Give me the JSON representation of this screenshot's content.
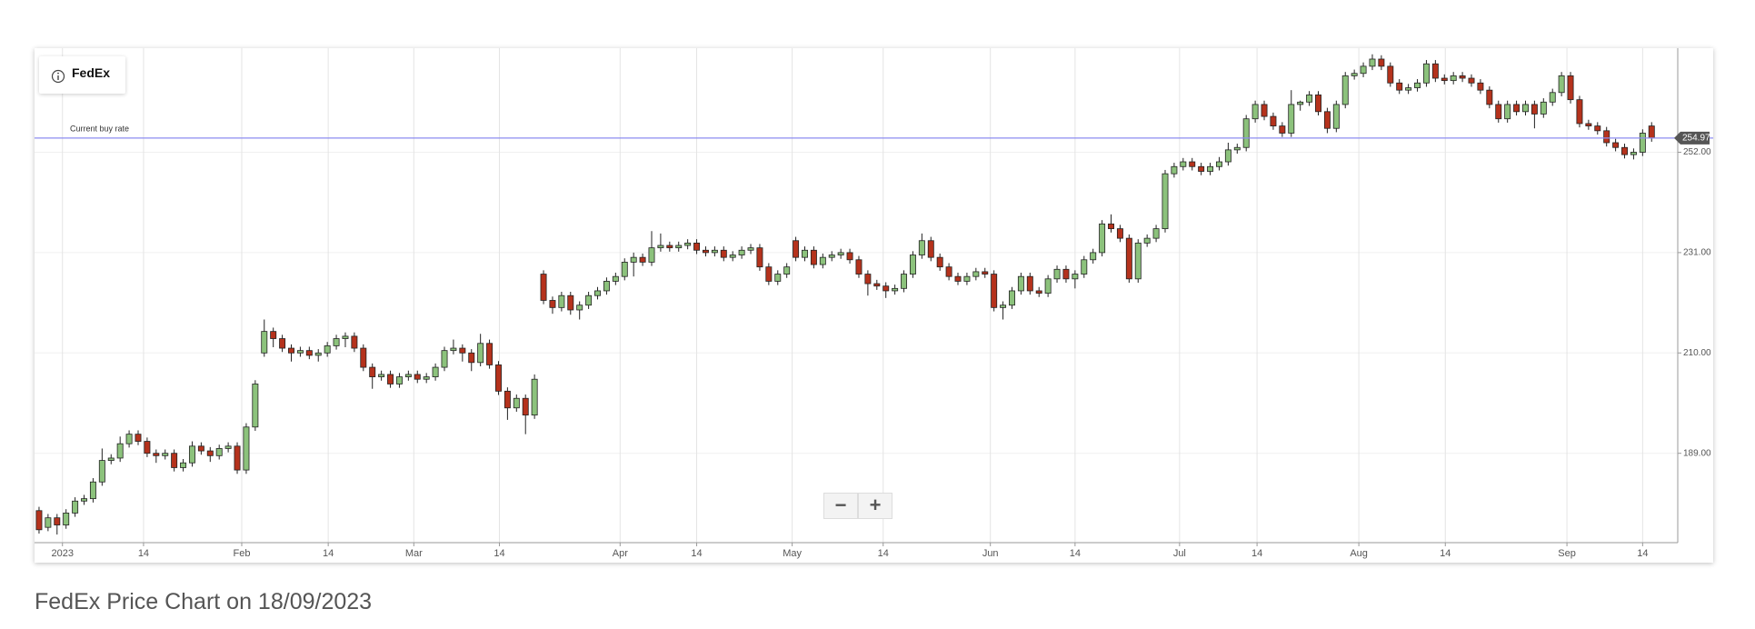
{
  "chart_data": {
    "type": "candlestick",
    "caption": "FedEx Price Chart on 18/09/2023",
    "xlim": [
      -0.5,
      181.9
    ],
    "xticks": [
      {
        "value": 2.6,
        "label": "2023"
      },
      {
        "value": 11.6,
        "label": "14"
      },
      {
        "value": 22.5,
        "label": "Feb"
      },
      {
        "value": 32.1,
        "label": "14"
      },
      {
        "value": 41.6,
        "label": "Mar"
      },
      {
        "value": 51.1,
        "label": "14"
      },
      {
        "value": 64.5,
        "label": "Apr"
      },
      {
        "value": 73.0,
        "label": "14"
      },
      {
        "value": 83.6,
        "label": "May"
      },
      {
        "value": 93.7,
        "label": "14"
      },
      {
        "value": 105.6,
        "label": "Jun"
      },
      {
        "value": 115.0,
        "label": "14"
      },
      {
        "value": 126.6,
        "label": "Jul"
      },
      {
        "value": 135.2,
        "label": "14"
      },
      {
        "value": 146.5,
        "label": "Aug"
      },
      {
        "value": 156.1,
        "label": "14"
      },
      {
        "value": 169.6,
        "label": "Sep"
      },
      {
        "value": 178.0,
        "label": "14"
      }
    ],
    "ylim": [
      170.3,
      273.4
    ],
    "yticks": [
      {
        "value": 189,
        "label": "189.00"
      },
      {
        "value": 210,
        "label": "210.00"
      },
      {
        "value": 231,
        "label": "231.00"
      },
      {
        "value": 252,
        "label": "252.00"
      }
    ],
    "grid": true,
    "reference_line": {
      "label": "Current buy rate",
      "value": 254.97,
      "color": "#8c8cf0"
    },
    "series": [
      {
        "name": "FedEx",
        "up_color": "#8cc27c",
        "down_color": "#b5321c",
        "open": [
          177.0,
          173.5,
          175.5,
          174.0,
          176.5,
          179.0,
          179.5,
          183.0,
          187.5,
          188.0,
          191.0,
          193.0,
          191.5,
          189.0,
          188.5,
          189.0,
          186.0,
          187.0,
          190.5,
          189.5,
          188.5,
          190.0,
          190.5,
          185.5,
          194.5,
          210.0,
          214.5,
          213.0,
          211.0,
          210.0,
          210.5,
          209.5,
          210.0,
          211.5,
          213.0,
          213.5,
          211.0,
          207.0,
          205.0,
          205.5,
          203.5,
          205.0,
          205.5,
          204.5,
          205.0,
          207.0,
          210.5,
          211.0,
          210.0,
          208.0,
          212.0,
          207.5,
          202.0,
          198.5,
          200.5,
          197.0,
          226.5,
          221.0,
          219.5,
          222.0,
          219.0,
          220.0,
          222.0,
          223.0,
          225.0,
          226.0,
          229.0,
          230.0,
          229.0,
          232.0,
          232.5,
          232.0,
          232.5,
          233.0,
          231.5,
          231.0,
          231.5,
          230.0,
          230.5,
          231.5,
          232.0,
          228.0,
          225.0,
          226.5,
          233.5,
          230.0,
          231.5,
          228.5,
          230.0,
          230.5,
          231.0,
          229.5,
          226.5,
          224.5,
          224.0,
          223.0,
          223.5,
          226.5,
          230.5,
          233.5,
          230.0,
          228.0,
          226.0,
          225.0,
          226.0,
          227.0,
          226.5,
          219.5,
          220.0,
          223.0,
          226.0,
          223.0,
          222.5,
          225.5,
          227.5,
          225.5,
          226.5,
          229.5,
          231.0,
          237.0,
          236.0,
          234.0,
          225.5,
          233.0,
          234.0,
          236.0,
          247.5,
          249.0,
          250.0,
          249.0,
          248.0,
          249.0,
          250.0,
          252.5,
          253.0,
          259.0,
          262.0,
          259.5,
          257.5,
          256.0,
          262.0,
          262.5,
          264.0,
          260.5,
          257.0,
          262.0,
          268.0,
          268.5,
          270.0,
          271.5,
          270.0,
          266.5,
          265.0,
          265.5,
          266.5,
          270.5,
          267.5,
          267.0,
          268.0,
          267.5,
          266.5,
          265.0,
          262.0,
          259.0,
          262.0,
          260.5,
          262.0,
          260.0,
          262.5,
          264.5,
          268.0,
          263.0,
          258.0,
          257.5,
          256.5,
          254.0,
          253.0,
          251.5,
          252.0,
          257.5
        ],
        "high": [
          177.8,
          176.3,
          176.3,
          177.3,
          179.8,
          180.3,
          183.8,
          190.0,
          188.8,
          192.5,
          193.8,
          193.8,
          192.3,
          189.8,
          189.8,
          189.8,
          187.8,
          191.5,
          191.3,
          190.3,
          190.8,
          191.3,
          191.3,
          195.3,
          204.3,
          217.0,
          215.3,
          213.8,
          211.8,
          211.3,
          211.3,
          210.8,
          212.3,
          213.8,
          214.3,
          214.3,
          211.8,
          207.8,
          206.3,
          206.3,
          205.8,
          206.3,
          206.3,
          205.8,
          207.8,
          211.3,
          212.8,
          211.8,
          210.8,
          214.0,
          212.8,
          208.3,
          202.8,
          201.3,
          201.3,
          205.5,
          227.3,
          221.8,
          222.8,
          222.8,
          220.8,
          222.8,
          223.8,
          225.8,
          226.8,
          229.8,
          231.0,
          230.8,
          235.5,
          235.0,
          233.3,
          233.3,
          233.8,
          233.8,
          232.3,
          232.3,
          232.3,
          231.3,
          232.3,
          232.8,
          232.8,
          228.8,
          227.3,
          228.8,
          234.3,
          232.3,
          232.3,
          230.8,
          231.3,
          231.8,
          231.8,
          230.3,
          227.3,
          225.3,
          224.8,
          224.3,
          227.3,
          231.3,
          235.0,
          234.3,
          230.8,
          228.8,
          226.8,
          226.8,
          227.8,
          227.8,
          227.3,
          220.8,
          223.8,
          226.8,
          226.8,
          223.8,
          226.3,
          228.3,
          228.3,
          227.3,
          230.3,
          231.8,
          237.8,
          239.0,
          236.8,
          234.8,
          233.8,
          234.8,
          236.8,
          248.3,
          249.8,
          250.8,
          250.8,
          249.8,
          249.8,
          251.0,
          254.0,
          253.8,
          259.8,
          262.8,
          262.8,
          260.3,
          258.3,
          265.0,
          262.8,
          264.8,
          264.8,
          261.3,
          262.8,
          268.8,
          269.3,
          270.8,
          272.5,
          272.3,
          270.8,
          267.3,
          266.3,
          267.3,
          271.3,
          271.3,
          268.3,
          268.8,
          268.8,
          268.3,
          267.3,
          265.8,
          262.8,
          262.8,
          262.8,
          262.8,
          262.8,
          263.3,
          265.3,
          268.8,
          268.8,
          263.8,
          258.8,
          258.3,
          257.3,
          254.8,
          253.8,
          252.8,
          256.8,
          258.3
        ],
        "low": [
          172.2,
          172.7,
          172.0,
          173.2,
          175.7,
          178.2,
          178.7,
          182.2,
          186.7,
          187.2,
          190.2,
          190.7,
          188.2,
          187.0,
          187.7,
          185.2,
          185.2,
          186.2,
          188.7,
          187.2,
          187.7,
          189.2,
          184.7,
          184.7,
          193.7,
          209.2,
          211.2,
          210.2,
          208.2,
          209.2,
          208.7,
          208.2,
          209.2,
          210.7,
          211.2,
          210.2,
          206.2,
          202.5,
          204.2,
          202.7,
          202.7,
          204.2,
          203.7,
          203.7,
          204.2,
          206.2,
          209.7,
          208.2,
          206.2,
          207.2,
          206.7,
          201.2,
          196.0,
          197.7,
          193.0,
          196.2,
          220.2,
          218.2,
          218.7,
          218.0,
          217.0,
          219.2,
          221.2,
          222.2,
          224.2,
          225.2,
          226.0,
          228.2,
          228.2,
          231.2,
          231.2,
          231.2,
          231.7,
          230.7,
          230.2,
          230.2,
          229.2,
          229.2,
          229.7,
          230.7,
          227.2,
          224.2,
          224.2,
          225.7,
          229.2,
          229.2,
          227.7,
          227.7,
          229.2,
          229.7,
          228.7,
          225.7,
          222.0,
          223.2,
          221.5,
          222.2,
          222.7,
          225.7,
          229.7,
          229.2,
          227.2,
          225.2,
          224.2,
          224.2,
          225.2,
          225.7,
          218.7,
          217.0,
          219.2,
          222.2,
          222.2,
          221.7,
          221.7,
          224.7,
          224.7,
          223.5,
          225.7,
          228.7,
          230.2,
          235.2,
          233.2,
          224.7,
          224.7,
          232.2,
          233.2,
          235.2,
          246.7,
          248.2,
          248.2,
          247.2,
          247.2,
          248.2,
          249.2,
          251.7,
          252.2,
          258.2,
          258.7,
          256.7,
          255.2,
          255.2,
          260.7,
          261.7,
          259.7,
          256.0,
          256.2,
          261.2,
          267.2,
          267.7,
          269.2,
          269.2,
          265.7,
          264.2,
          264.2,
          264.7,
          265.7,
          266.7,
          266.2,
          266.2,
          266.7,
          265.7,
          264.2,
          261.2,
          258.2,
          258.2,
          259.7,
          259.7,
          257.0,
          259.2,
          261.7,
          263.7,
          262.2,
          257.2,
          256.7,
          255.7,
          253.2,
          252.2,
          250.7,
          250.5,
          251.2,
          254.2
        ],
        "close": [
          173.0,
          175.5,
          174.0,
          176.5,
          179.0,
          179.5,
          183.0,
          187.5,
          188.0,
          191.0,
          193.0,
          191.5,
          189.0,
          188.5,
          189.0,
          186.0,
          187.0,
          190.5,
          189.5,
          188.5,
          190.0,
          190.5,
          185.5,
          194.5,
          203.5,
          214.5,
          213.0,
          211.0,
          210.0,
          210.5,
          209.5,
          210.0,
          211.5,
          213.0,
          213.5,
          211.0,
          207.0,
          205.0,
          205.5,
          203.5,
          205.0,
          205.5,
          204.5,
          205.0,
          207.0,
          210.5,
          211.0,
          210.0,
          208.0,
          212.0,
          207.5,
          202.0,
          198.5,
          200.5,
          197.0,
          204.5,
          221.0,
          219.5,
          222.0,
          219.0,
          220.0,
          222.0,
          223.0,
          225.0,
          226.0,
          229.0,
          230.0,
          229.0,
          232.0,
          232.5,
          232.0,
          232.5,
          233.0,
          231.5,
          231.0,
          231.5,
          230.0,
          230.5,
          231.5,
          232.0,
          228.0,
          225.0,
          226.5,
          228.0,
          230.0,
          231.5,
          228.5,
          230.0,
          230.5,
          231.0,
          229.5,
          226.5,
          224.5,
          224.0,
          223.0,
          223.5,
          226.5,
          230.5,
          233.5,
          230.0,
          228.0,
          226.0,
          225.0,
          226.0,
          227.0,
          226.5,
          219.5,
          220.0,
          223.0,
          226.0,
          223.0,
          222.5,
          225.5,
          227.5,
          225.5,
          226.5,
          229.5,
          231.0,
          237.0,
          236.0,
          234.0,
          225.5,
          233.0,
          234.0,
          236.0,
          247.5,
          249.0,
          250.0,
          249.0,
          248.0,
          249.0,
          250.0,
          252.5,
          253.0,
          259.0,
          262.0,
          259.5,
          257.5,
          256.0,
          262.0,
          262.5,
          264.0,
          260.5,
          257.0,
          262.0,
          268.0,
          268.5,
          270.0,
          271.5,
          270.0,
          266.5,
          265.0,
          265.5,
          266.5,
          270.5,
          267.5,
          267.0,
          268.0,
          267.5,
          266.5,
          265.0,
          262.0,
          259.0,
          262.0,
          260.5,
          262.0,
          260.0,
          262.5,
          264.5,
          268.0,
          263.0,
          258.0,
          257.5,
          256.5,
          254.0,
          253.0,
          251.5,
          252.0,
          256.0,
          254.97
        ]
      }
    ]
  }
}
